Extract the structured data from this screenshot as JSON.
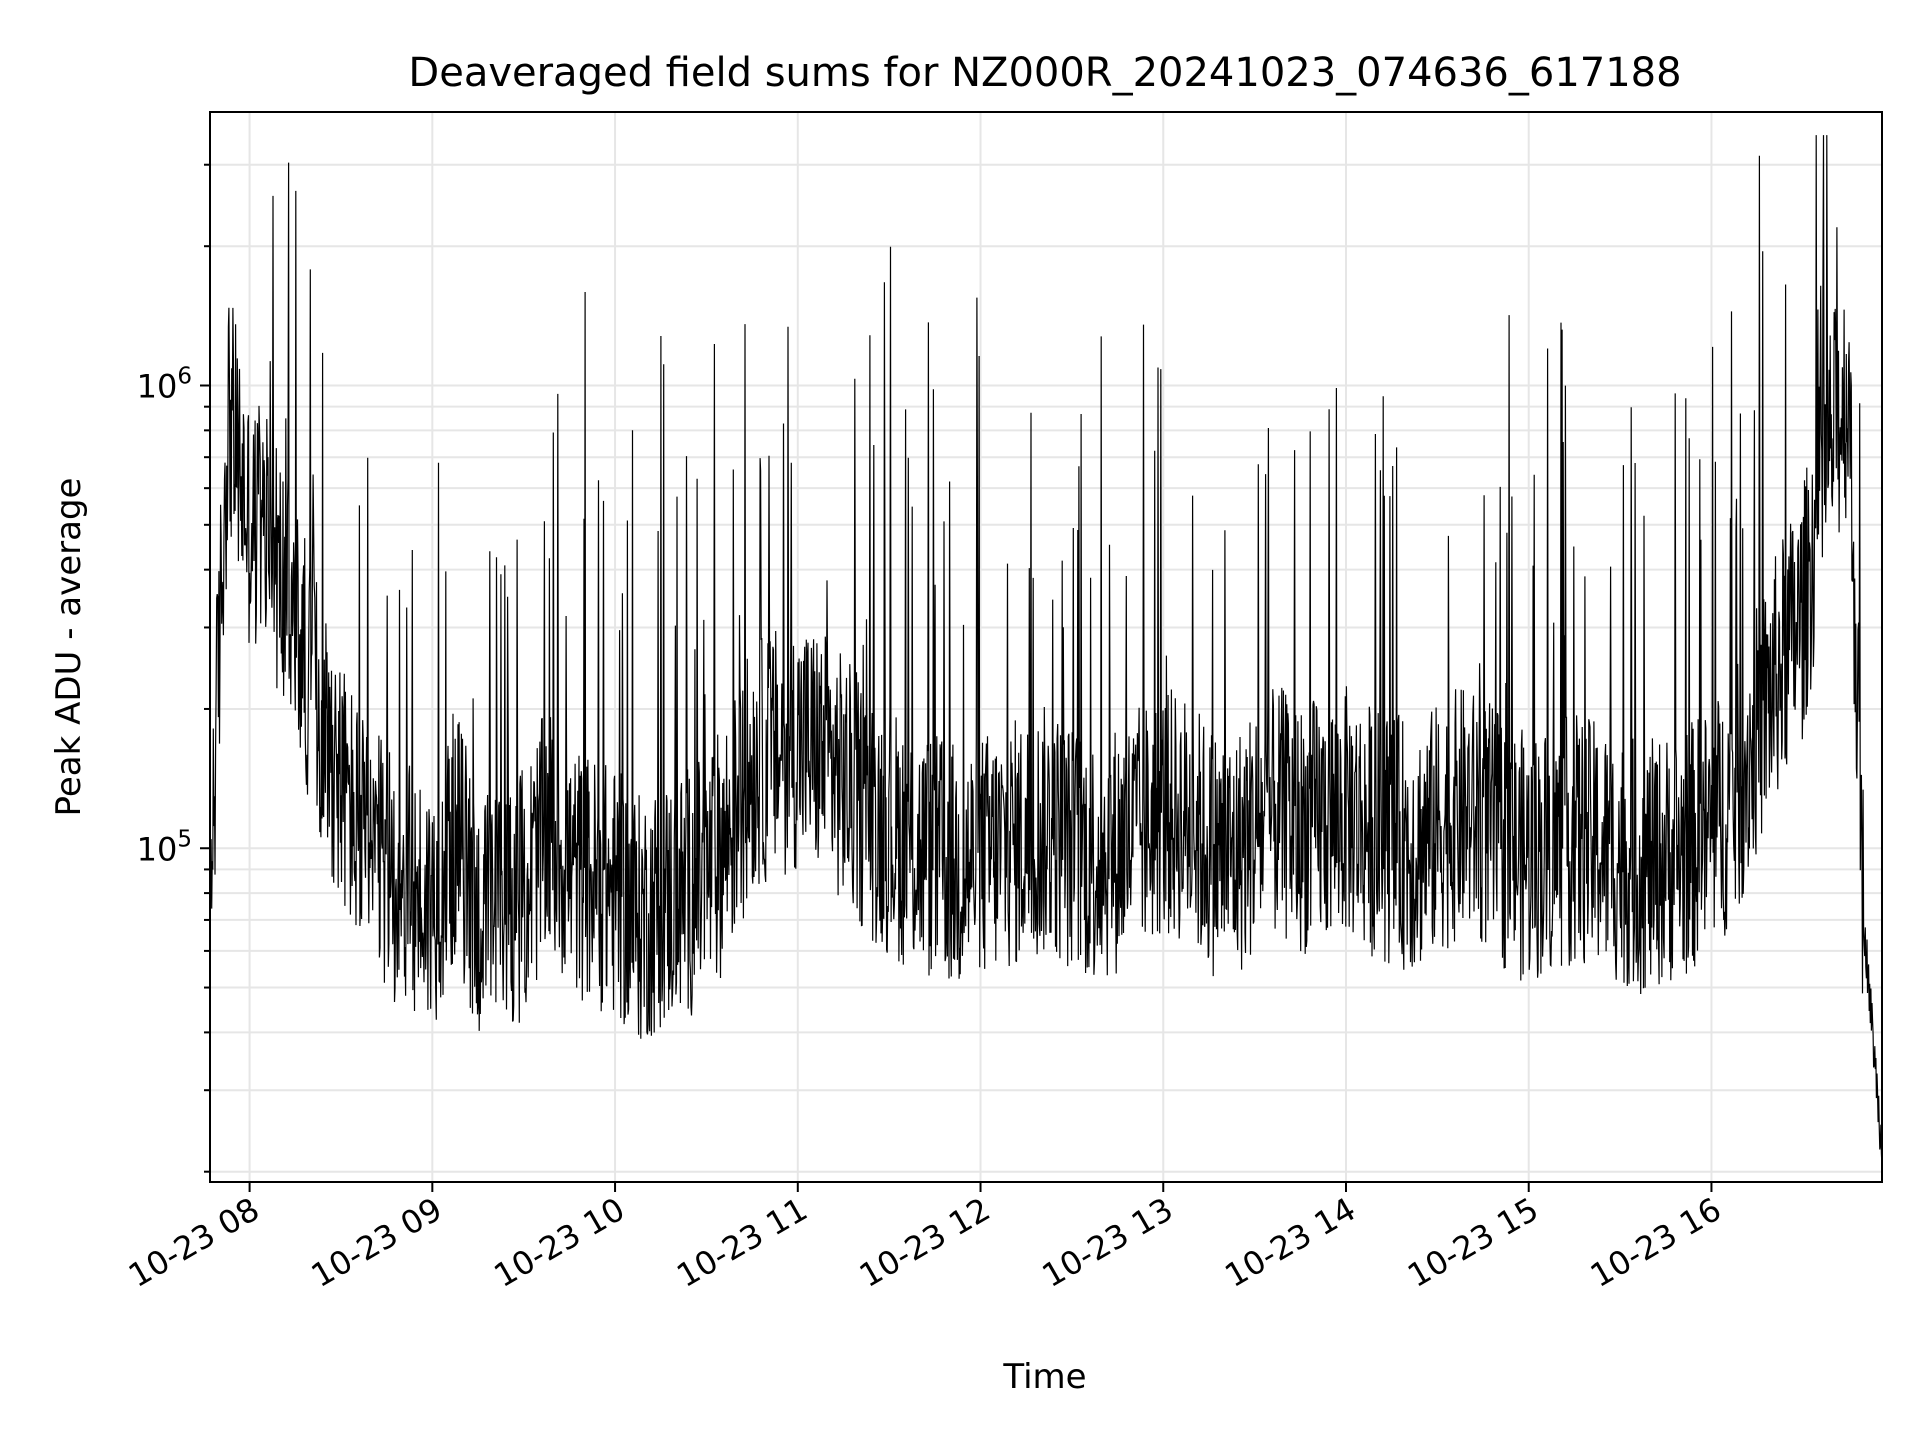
{
  "chart_data": {
    "type": "line",
    "title": "Deaveraged field sums for NZ000R_20241023_074636_617188",
    "xlabel": "Time",
    "ylabel": "Peak ADU - average",
    "yscale": "log",
    "ylim": [
      19000,
      3900000
    ],
    "xlim": [
      "10-23 07:47",
      "10-23 16:56"
    ],
    "grid": true,
    "line_color": "#000000",
    "x_ticks": [
      "10-23 08",
      "10-23 09",
      "10-23 10",
      "10-23 11",
      "10-23 12",
      "10-23 13",
      "10-23 14",
      "10-23 15",
      "10-23 16"
    ],
    "y_ticks": [
      {
        "base": "10",
        "exp": "5",
        "value": 100000
      },
      {
        "base": "10",
        "exp": "6",
        "value": 1000000
      }
    ],
    "series": [
      {
        "x": [
          "10-23 07:47",
          "10-23 07:53",
          "10-23 08:00",
          "10-23 08:07",
          "10-23 08:15",
          "10-23 08:23",
          "10-23 08:30",
          "10-23 08:38",
          "10-23 08:45",
          "10-23 08:53",
          "10-23 09:00",
          "10-23 09:08",
          "10-23 09:15",
          "10-23 09:23",
          "10-23 09:30",
          "10-23 09:38",
          "10-23 09:45",
          "10-23 09:53",
          "10-23 10:00",
          "10-23 10:08",
          "10-23 10:15",
          "10-23 10:23",
          "10-23 10:30",
          "10-23 10:38",
          "10-23 10:45",
          "10-23 10:53",
          "10-23 11:00",
          "10-23 11:08",
          "10-23 11:15",
          "10-23 11:23",
          "10-23 11:30",
          "10-23 11:38",
          "10-23 11:45",
          "10-23 11:53",
          "10-23 12:00",
          "10-23 12:08",
          "10-23 12:15",
          "10-23 12:23",
          "10-23 12:30",
          "10-23 12:38",
          "10-23 12:45",
          "10-23 12:53",
          "10-23 13:00",
          "10-23 13:08",
          "10-23 13:15",
          "10-23 13:23",
          "10-23 13:30",
          "10-23 13:38",
          "10-23 13:45",
          "10-23 13:53",
          "10-23 14:00",
          "10-23 14:08",
          "10-23 14:15",
          "10-23 14:23",
          "10-23 14:30",
          "10-23 14:38",
          "10-23 14:45",
          "10-23 14:53",
          "10-23 15:00",
          "10-23 15:08",
          "10-23 15:15",
          "10-23 15:23",
          "10-23 15:30",
          "10-23 15:38",
          "10-23 15:45",
          "10-23 15:53",
          "10-23 16:00",
          "10-23 16:08",
          "10-23 16:15",
          "10-23 16:23",
          "10-23 16:30",
          "10-23 16:38",
          "10-23 16:45",
          "10-23 16:50",
          "10-23 16:56"
        ],
        "y": [
          80000,
          900000,
          500000,
          450000,
          300000,
          200000,
          140000,
          100000,
          90000,
          80000,
          75000,
          110000,
          70000,
          75000,
          80000,
          110000,
          90000,
          85000,
          80000,
          70000,
          75000,
          80000,
          85000,
          110000,
          150000,
          160000,
          170000,
          160000,
          140000,
          120000,
          110000,
          100000,
          95000,
          90000,
          95000,
          100000,
          105000,
          110000,
          100000,
          95000,
          100000,
          110000,
          120000,
          115000,
          100000,
          95000,
          110000,
          120000,
          110000,
          115000,
          120000,
          110000,
          105000,
          100000,
          110000,
          120000,
          115000,
          100000,
          95000,
          100000,
          105000,
          100000,
          95000,
          90000,
          95000,
          100000,
          110000,
          130000,
          180000,
          250000,
          320000,
          700000,
          1000000,
          70000,
          22000
        ]
      }
    ]
  }
}
